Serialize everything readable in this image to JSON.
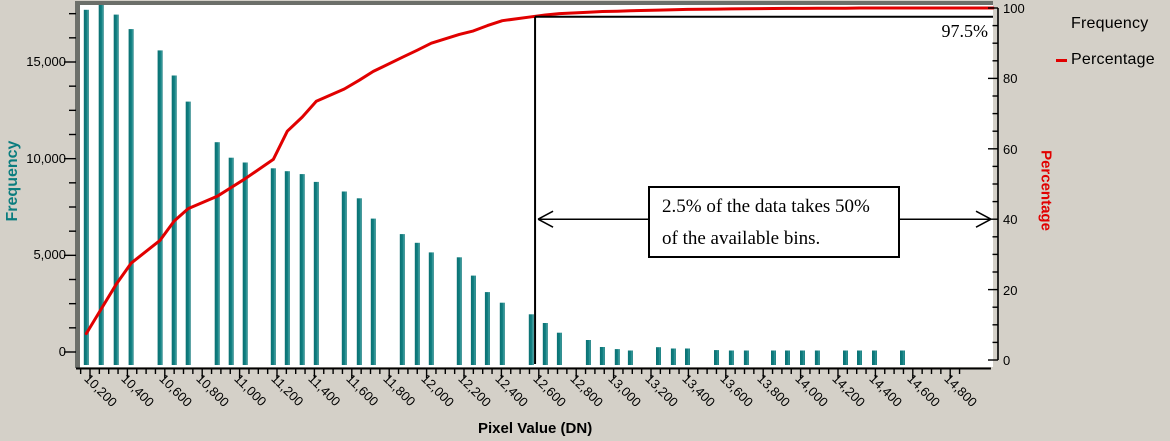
{
  "colors": {
    "background": "#d4d0c8",
    "plot_background": "#ffffff",
    "frame": "#6c6f6a",
    "bar": "#0c7d7f",
    "cumulative_line": "#e10000",
    "axis_text": "#000000",
    "left_axis_title": "#0b7d7f",
    "right_axis_title": "#e10000"
  },
  "legend": {
    "position": "right-outside",
    "items": [
      {
        "label": "Frequency",
        "marker": "none",
        "marker_color": "transparent"
      },
      {
        "label": "Percentage",
        "marker": "red-dash",
        "marker_color": "#e10000"
      }
    ]
  },
  "annotations": {
    "threshold_label": "97.5%",
    "threshold_pct": 97.5,
    "threshold_dn": 12580,
    "box_line1": "2.5% of the data takes 50%",
    "box_line2": "of the available bins.",
    "arrow_pct": 40
  },
  "chart_data": {
    "type": "bar + cumulative line (pareto histogram)",
    "title": "",
    "xlabel": "Pixel Value (DN)",
    "ylabel_left": "Frequency",
    "ylabel_right": "Percentage",
    "xlim": [
      10050,
      15000
    ],
    "ylim_left": [
      0,
      18000
    ],
    "ylim_right": [
      0,
      100
    ],
    "grid": "off",
    "x_tick_labels": [
      "10,200",
      "10,400",
      "10,600",
      "10,800",
      "11,000",
      "11,200",
      "11,400",
      "11,600",
      "11,800",
      "12,000",
      "12,200",
      "12,400",
      "12,600",
      "12,800",
      "13,000",
      "13,200",
      "13,400",
      "13,600",
      "13,800",
      "14,000",
      "14,200",
      "14,400",
      "14,600",
      "14,800"
    ],
    "x_major_start": 10200,
    "x_major_step": 200,
    "x_minor_step": 50,
    "left_tick_values": [
      0,
      5000,
      10000,
      15000
    ],
    "left_tick_labels": [
      "0",
      "5,000",
      "10,000",
      "15,000"
    ],
    "left_minor_step": 1250,
    "right_tick_values": [
      0,
      20,
      40,
      60,
      80,
      100
    ],
    "right_tick_labels": [
      "0",
      "20",
      "40",
      "60",
      "80",
      "100"
    ],
    "right_minor_step": 5,
    "bars": {
      "name": "Frequency",
      "dn": [
        10180,
        10260,
        10340,
        10420,
        10575,
        10650,
        10725,
        10880,
        10955,
        11030,
        11180,
        11255,
        11335,
        11410,
        11560,
        11640,
        11715,
        11870,
        11950,
        12025,
        12175,
        12250,
        12325,
        12405,
        12560,
        12635,
        12710,
        12865,
        12940,
        13020,
        13090,
        13240,
        13320,
        13395,
        13550,
        13630,
        13710,
        13855,
        13930,
        14010,
        14090,
        14240,
        14315,
        14395,
        14545
      ],
      "frequency": [
        17700,
        17950,
        17450,
        16700,
        15600,
        14300,
        12950,
        10850,
        10050,
        9800,
        9500,
        9350,
        9200,
        8800,
        8300,
        7950,
        6900,
        6100,
        5650,
        5150,
        4900,
        3950,
        3100,
        2550,
        1950,
        1500,
        1000,
        620,
        260,
        150,
        80,
        250,
        180,
        180,
        100,
        80,
        80,
        80,
        80,
        80,
        80,
        80,
        80,
        80,
        80
      ]
    },
    "line": {
      "name": "Percentage",
      "dn": [
        10180,
        10260,
        10340,
        10420,
        10575,
        10650,
        10725,
        10880,
        10955,
        11030,
        11180,
        11255,
        11335,
        11410,
        11560,
        11640,
        11715,
        11870,
        11950,
        12025,
        12175,
        12250,
        12325,
        12405,
        12560,
        12635,
        12710,
        12865,
        12940,
        13020,
        13090,
        13240,
        13320,
        13395,
        13550,
        13630,
        13710,
        13855,
        13930,
        14010,
        14090,
        14240,
        14315,
        14395,
        14545
      ],
      "percentage": [
        7.5,
        14.5,
        21.5,
        27.5,
        34,
        39.5,
        43,
        46.5,
        49,
        51.5,
        57,
        65,
        69,
        73.5,
        77,
        79.5,
        82,
        86,
        88,
        90,
        92.5,
        93.5,
        95,
        96.4,
        97.5,
        98,
        98.4,
        98.8,
        99,
        99.1,
        99.2,
        99.4,
        99.5,
        99.6,
        99.7,
        99.75,
        99.8,
        99.85,
        99.9,
        99.9,
        99.95,
        99.95,
        100,
        100,
        100
      ]
    }
  }
}
